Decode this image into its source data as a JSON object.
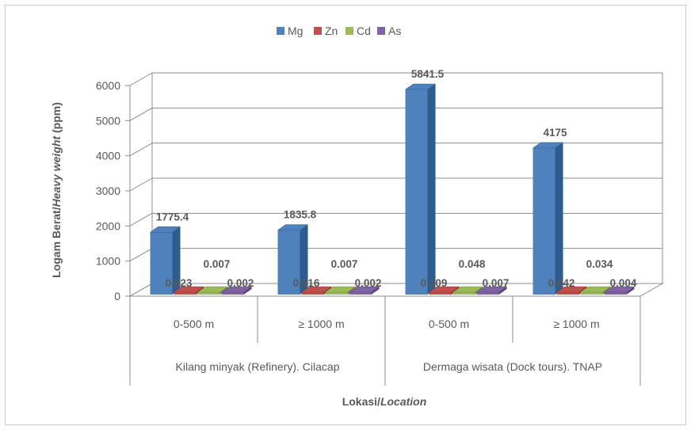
{
  "chart_data": {
    "type": "bar",
    "style": "3d-clustered-column",
    "ylabel_main": "Logam Berat/",
    "ylabel_italic": "Heavy weight",
    "ylabel_tail": " (ppm)",
    "xlabel_main": "Lokasi/",
    "xlabel_italic": "Location",
    "ylim": [
      0,
      6000
    ],
    "yticks": [
      "0",
      "1000",
      "2000",
      "3000",
      "4000",
      "5000",
      "6000"
    ],
    "ytick_values": [
      0,
      1000,
      2000,
      3000,
      4000,
      5000,
      6000
    ],
    "grid": true,
    "legend_position": "top",
    "categories": [
      "0-500 m",
      "≥ 1000 m",
      "0-500 m",
      "≥ 1000 m"
    ],
    "groups": [
      {
        "label": "Kilang minyak (Refinery). Cilacap"
      },
      {
        "label": "Dermaga wisata (Dock tours). TNAP"
      }
    ],
    "series": [
      {
        "name": "Mg",
        "color": "#4F81BD",
        "dark": "#2E5C8E",
        "values": [
          1775.4,
          1835.8,
          5841.5,
          4175
        ],
        "labels": [
          "1775.4",
          "1835.8",
          "5841.5",
          "4175"
        ]
      },
      {
        "name": "Zn",
        "color": "#C0504D",
        "dark": "#8E3230",
        "values": [
          0.023,
          0.016,
          0.109,
          0.042
        ],
        "labels": [
          "0.023",
          "0.016",
          "0.109",
          "0.042"
        ]
      },
      {
        "name": "Cd",
        "color": "#9BBB59",
        "dark": "#6E8A38",
        "values": [
          0.007,
          0.007,
          0.048,
          0.034
        ],
        "labels": [
          "0.007",
          "0.007",
          "0.048",
          "0.034"
        ]
      },
      {
        "name": "As",
        "color": "#8064A2",
        "dark": "#5A4478",
        "values": [
          0.002,
          0.002,
          0.007,
          0.004
        ],
        "labels": [
          "0.002",
          "0.002",
          "0.007",
          "0.004"
        ]
      }
    ]
  }
}
